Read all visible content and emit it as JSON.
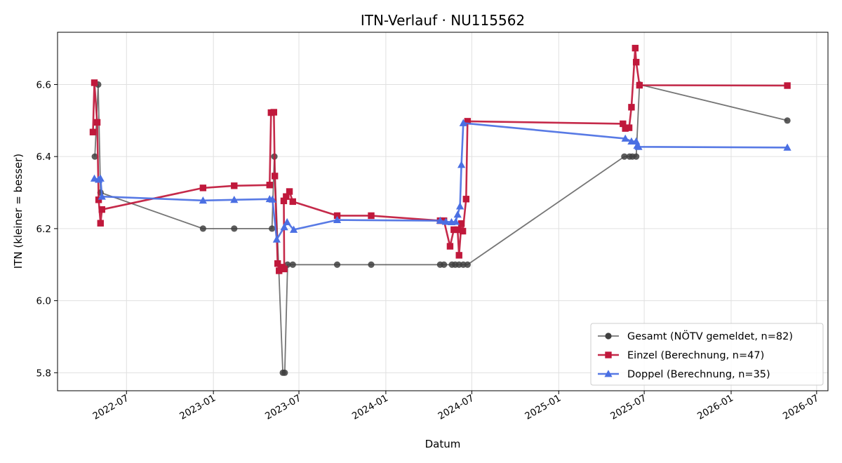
{
  "chart_data": {
    "type": "line",
    "title": "ITN-Verlauf · NU115562",
    "xlabel": "Datum",
    "ylabel": "ITN  (kleiner = besser)",
    "x_type": "date",
    "xlim": [
      "2022-02-05",
      "2026-07-25"
    ],
    "ylim": [
      5.75,
      6.745
    ],
    "x_ticks": [
      "2022-07",
      "2023-01",
      "2023-07",
      "2024-01",
      "2024-07",
      "2025-01",
      "2025-07",
      "2026-01",
      "2026-07"
    ],
    "y_ticks": [
      5.8,
      6.0,
      6.2,
      6.4,
      6.6
    ],
    "grid": true,
    "legend_position": "bottom-right",
    "series": [
      {
        "name": "Gesamt (NÖTV gemeldet, n=82)",
        "color": "#404040",
        "marker": "circle",
        "points": [
          [
            "2022-04-25",
            6.4
          ],
          [
            "2022-05-02",
            6.6
          ],
          [
            "2022-05-07",
            6.3
          ],
          [
            "2022-12-10",
            6.2
          ],
          [
            "2023-02-14",
            6.2
          ],
          [
            "2023-05-05",
            6.2
          ],
          [
            "2023-05-10",
            6.4
          ],
          [
            "2023-05-28",
            5.8
          ],
          [
            "2023-06-01",
            5.8
          ],
          [
            "2023-06-07",
            6.1
          ],
          [
            "2023-06-18",
            6.1
          ],
          [
            "2023-09-20",
            6.1
          ],
          [
            "2023-12-01",
            6.1
          ],
          [
            "2024-04-25",
            6.1
          ],
          [
            "2024-05-03",
            6.1
          ],
          [
            "2024-05-20",
            6.1
          ],
          [
            "2024-05-27",
            6.1
          ],
          [
            "2024-06-04",
            6.1
          ],
          [
            "2024-06-13",
            6.1
          ],
          [
            "2024-06-22",
            6.1
          ],
          [
            "2025-05-20",
            6.4
          ],
          [
            "2025-05-31",
            6.4
          ],
          [
            "2025-06-06",
            6.4
          ],
          [
            "2025-06-14",
            6.4
          ],
          [
            "2025-06-21",
            6.6
          ],
          [
            "2026-04-30",
            6.5
          ]
        ]
      },
      {
        "name": "Einzel (Berechnung, n=47)",
        "color": "#c0183b",
        "marker": "square",
        "points": [
          [
            "2022-04-21",
            6.468
          ],
          [
            "2022-04-24",
            6.605
          ],
          [
            "2022-04-30",
            6.495
          ],
          [
            "2022-05-03",
            6.28
          ],
          [
            "2022-05-07",
            6.215
          ],
          [
            "2022-05-10",
            6.253
          ],
          [
            "2022-12-10",
            6.313
          ],
          [
            "2023-02-14",
            6.319
          ],
          [
            "2023-04-30",
            6.321
          ],
          [
            "2023-05-03",
            6.522
          ],
          [
            "2023-05-09",
            6.523
          ],
          [
            "2023-05-11",
            6.346
          ],
          [
            "2023-05-17",
            6.103
          ],
          [
            "2023-05-20",
            6.083
          ],
          [
            "2023-05-27",
            6.093
          ],
          [
            "2023-05-31",
            6.088
          ],
          [
            "2023-05-30",
            6.277
          ],
          [
            "2023-06-04",
            6.289
          ],
          [
            "2023-06-11",
            6.303
          ],
          [
            "2023-06-18",
            6.275
          ],
          [
            "2023-09-20",
            6.236
          ],
          [
            "2023-12-01",
            6.236
          ],
          [
            "2024-04-25",
            6.222
          ],
          [
            "2024-05-03",
            6.222
          ],
          [
            "2024-05-16",
            6.151
          ],
          [
            "2024-05-24",
            6.197
          ],
          [
            "2024-06-01",
            6.197
          ],
          [
            "2024-06-04",
            6.126
          ],
          [
            "2024-06-09",
            6.214
          ],
          [
            "2024-06-12",
            6.193
          ],
          [
            "2024-06-19",
            6.282
          ],
          [
            "2024-06-22",
            6.498
          ],
          [
            "2025-05-17",
            6.491
          ],
          [
            "2025-05-22",
            6.478
          ],
          [
            "2025-05-30",
            6.48
          ],
          [
            "2025-06-04",
            6.537
          ],
          [
            "2025-06-12",
            6.701
          ],
          [
            "2025-06-14",
            6.662
          ],
          [
            "2025-06-21",
            6.598
          ],
          [
            "2026-04-30",
            6.597
          ]
        ]
      },
      {
        "name": "Doppel (Berechnung, n=35)",
        "color": "#4a6fe3",
        "marker": "triangle",
        "points": [
          [
            "2022-04-24",
            6.339
          ],
          [
            "2022-05-03",
            6.336
          ],
          [
            "2022-05-07",
            6.339
          ],
          [
            "2022-05-10",
            6.289
          ],
          [
            "2022-12-10",
            6.278
          ],
          [
            "2023-02-14",
            6.28
          ],
          [
            "2023-04-30",
            6.282
          ],
          [
            "2023-05-06",
            6.281
          ],
          [
            "2023-05-15",
            6.17
          ],
          [
            "2023-05-31",
            6.204
          ],
          [
            "2023-06-06",
            6.218
          ],
          [
            "2023-06-20",
            6.197
          ],
          [
            "2023-09-20",
            6.224
          ],
          [
            "2024-04-25",
            6.222
          ],
          [
            "2024-05-07",
            6.219
          ],
          [
            "2024-05-19",
            6.218
          ],
          [
            "2024-05-28",
            6.219
          ],
          [
            "2024-06-01",
            6.239
          ],
          [
            "2024-06-06",
            6.262
          ],
          [
            "2024-06-09",
            6.377
          ],
          [
            "2024-06-13",
            6.493
          ],
          [
            "2025-05-22",
            6.45
          ],
          [
            "2025-06-04",
            6.442
          ],
          [
            "2025-06-14",
            6.442
          ],
          [
            "2025-06-16",
            6.43
          ],
          [
            "2025-06-19",
            6.427
          ],
          [
            "2026-04-30",
            6.425
          ]
        ]
      }
    ]
  }
}
